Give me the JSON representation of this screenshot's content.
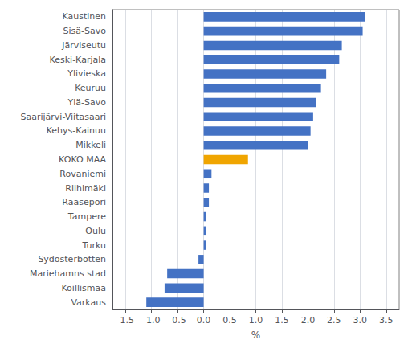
{
  "chart_data": {
    "type": "bar",
    "orientation": "horizontal",
    "categories": [
      "Kaustinen",
      "Sisä-Savo",
      "Järviseutu",
      "Keski-Karjala",
      "Ylivieska",
      "Keuruu",
      "Ylä-Savo",
      "Saarijärvi-Viitasaari",
      "Kehys-Kainuu",
      "Mikkeli",
      "KOKO MAA",
      "Rovaniemi",
      "Riihimäki",
      "Raasepori",
      "Tampere",
      "Oulu",
      "Turku",
      "Sydösterbotten",
      "Mariehamns stad",
      "Koillismaa",
      "Varkaus"
    ],
    "values": [
      3.1,
      3.05,
      2.65,
      2.6,
      2.35,
      2.25,
      2.15,
      2.1,
      2.05,
      2.0,
      0.85,
      0.15,
      0.1,
      0.1,
      0.05,
      0.05,
      0.05,
      -0.1,
      -0.7,
      -0.75,
      -1.1
    ],
    "colors": [
      "#4472c4",
      "#4472c4",
      "#4472c4",
      "#4472c4",
      "#4472c4",
      "#4472c4",
      "#4472c4",
      "#4472c4",
      "#4472c4",
      "#4472c4",
      "#f0a500",
      "#4472c4",
      "#4472c4",
      "#4472c4",
      "#4472c4",
      "#4472c4",
      "#4472c4",
      "#4472c4",
      "#4472c4",
      "#4472c4",
      "#4472c4"
    ],
    "xlabel": "%",
    "xlim": [
      -1.75,
      3.75
    ],
    "xticks": [
      -1.5,
      {
        "value": -1,
        "label": "-1.0"
      },
      -0.5,
      {
        "value": 0,
        "label": "0.0"
      },
      0.5,
      {
        "value": 1,
        "label": "1.0"
      },
      1.5,
      {
        "value": 2,
        "label": "2.0"
      },
      2.5,
      {
        "value": 3,
        "label": "3.0"
      },
      3.5
    ],
    "grid": true
  }
}
